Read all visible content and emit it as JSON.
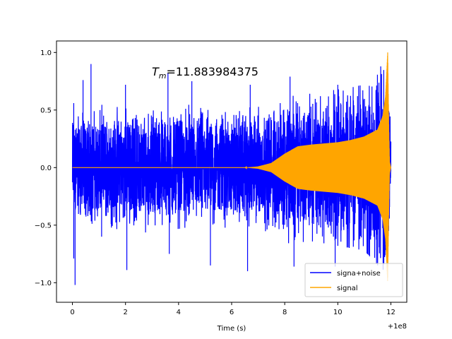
{
  "chart_data": {
    "type": "line",
    "title": "",
    "xlabel": "Time (s)",
    "ylabel": "",
    "x_offset_label": "+1e8",
    "xlim": [
      -0.6,
      12.6
    ],
    "ylim": [
      -1.17,
      1.1
    ],
    "x_ticks": [
      0,
      2,
      4,
      6,
      8,
      10,
      12
    ],
    "x_tick_labels": [
      "0",
      "2",
      "4",
      "6",
      "8",
      "10",
      "12"
    ],
    "y_ticks": [
      -1.0,
      -0.5,
      0.0,
      0.5,
      1.0
    ],
    "y_tick_labels": [
      "−1.0",
      "−0.5",
      "0.0",
      "0.5",
      "1.0"
    ],
    "annotation": {
      "symbol": "T",
      "subscript": "m",
      "text": "=11.883984375",
      "x": 3.0,
      "y": 0.83
    },
    "grid": false,
    "legend_position": "lower-right",
    "series": [
      {
        "name": "signa+noise",
        "color": "#0000ff",
        "x_range": [
          0,
          12.0
        ],
        "noise_amplitude_envelope": [
          [
            0,
            0.58
          ],
          [
            2,
            0.58
          ],
          [
            6,
            0.58
          ],
          [
            7,
            0.6
          ],
          [
            8,
            0.66
          ],
          [
            9,
            0.64
          ],
          [
            10,
            0.68
          ],
          [
            11,
            0.72
          ],
          [
            11.7,
            0.9
          ],
          [
            11.9,
            0.55
          ],
          [
            12.0,
            0.55
          ]
        ],
        "peaks": [
          [
            0.05,
            0.56
          ],
          [
            0.1,
            -1.02
          ],
          [
            0.05,
            -0.79
          ],
          [
            0.4,
            0.76
          ],
          [
            0.7,
            0.9
          ],
          [
            1.1,
            -0.6
          ],
          [
            2.0,
            0.72
          ],
          [
            2.05,
            -0.89
          ],
          [
            3.6,
            0.82
          ],
          [
            3.65,
            -0.75
          ],
          [
            4.5,
            0.75
          ],
          [
            5.2,
            -0.85
          ],
          [
            6.6,
            -0.9
          ],
          [
            6.7,
            0.72
          ],
          [
            8.2,
            0.79
          ],
          [
            8.35,
            -0.86
          ],
          [
            9.9,
            -0.86
          ],
          [
            10.0,
            0.72
          ],
          [
            11.8,
            0.55
          ]
        ]
      },
      {
        "name": "signal",
        "color": "#ffa500",
        "x_range": [
          0,
          12.0
        ],
        "envelope": [
          [
            0,
            0.0
          ],
          [
            6.5,
            0.0
          ],
          [
            7.0,
            0.01
          ],
          [
            7.5,
            0.04
          ],
          [
            8.0,
            0.12
          ],
          [
            8.5,
            0.185
          ],
          [
            9.0,
            0.2
          ],
          [
            10.0,
            0.22
          ],
          [
            10.5,
            0.24
          ],
          [
            11.0,
            0.27
          ],
          [
            11.5,
            0.33
          ],
          [
            11.7,
            0.45
          ],
          [
            11.8,
            0.62
          ],
          [
            11.88,
            1.0
          ],
          [
            11.92,
            0.4
          ],
          [
            11.95,
            0.05
          ],
          [
            12.0,
            0.0
          ]
        ]
      }
    ]
  }
}
